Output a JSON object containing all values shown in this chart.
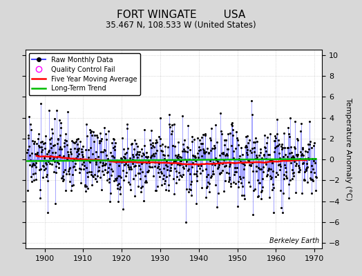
{
  "title": "FORT WINGATE        USA",
  "subtitle": "35.467 N, 108.533 W (United States)",
  "ylabel": "Temperature Anomaly (°C)",
  "xlim": [
    1895,
    1972
  ],
  "ylim": [
    -8.5,
    10.5
  ],
  "yticks": [
    -8,
    -6,
    -4,
    -2,
    0,
    2,
    4,
    6,
    8,
    10
  ],
  "xticks": [
    1900,
    1910,
    1920,
    1930,
    1940,
    1950,
    1960,
    1970
  ],
  "background_color": "#d8d8d8",
  "plot_bg_color": "#ffffff",
  "raw_line_color": "#4444ff",
  "raw_dot_color": "#000000",
  "qc_fail_color": "#ff00ff",
  "moving_avg_color": "#ff0000",
  "trend_color": "#00bb00",
  "watermark": "Berkeley Earth",
  "title_fontsize": 11,
  "subtitle_fontsize": 8.5,
  "tick_fontsize": 8,
  "ylabel_fontsize": 8
}
